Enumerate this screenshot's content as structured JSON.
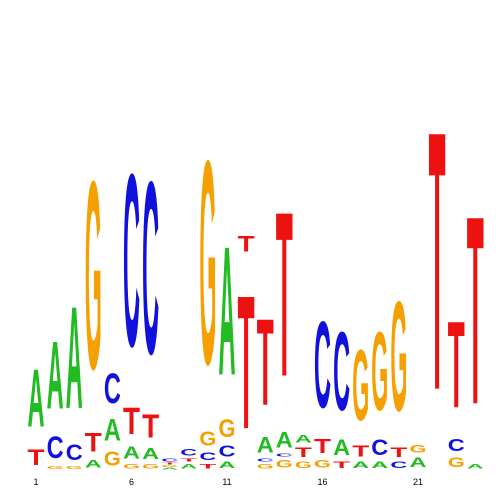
{
  "chart_data": {
    "type": "sequence-logo",
    "title": "",
    "xlabel": "",
    "ylabel": "",
    "colors": {
      "A": "#22bb22",
      "C": "#1111dd",
      "G": "#f5a000",
      "T": "#ee1111"
    },
    "x_tick_labels": [
      "1",
      "6",
      "11",
      "16",
      "21"
    ],
    "x_tick_positions": [
      1,
      6,
      11,
      16,
      21
    ],
    "positions": [
      {
        "pos": 1,
        "letters": [
          [
            "T",
            0.1
          ],
          [
            "A",
            0.37
          ]
        ]
      },
      {
        "pos": 2,
        "letters": [
          [
            "G",
            0.02
          ],
          [
            "C",
            0.14
          ],
          [
            "A",
            0.43
          ]
        ]
      },
      {
        "pos": 3,
        "letters": [
          [
            "G",
            0.02
          ],
          [
            "C",
            0.1
          ],
          [
            "A",
            0.65
          ]
        ]
      },
      {
        "pos": 4,
        "letters": [
          [
            "A",
            0.05
          ],
          [
            "T",
            0.12
          ],
          [
            "G",
            1.2
          ]
        ]
      },
      {
        "pos": 5,
        "letters": [
          [
            "G",
            0.09
          ],
          [
            "A",
            0.14
          ],
          [
            "C",
            0.19
          ]
        ]
      },
      {
        "pos": 6,
        "letters": [
          [
            "G",
            0.03
          ],
          [
            "A",
            0.08
          ],
          [
            "T",
            0.17
          ],
          [
            "C",
            1.1
          ]
        ]
      },
      {
        "pos": 7,
        "letters": [
          [
            "G",
            0.03
          ],
          [
            "A",
            0.07
          ],
          [
            "T",
            0.15
          ],
          [
            "C",
            1.1
          ]
        ]
      },
      {
        "pos": 8,
        "letters": [
          [
            "A",
            0.01
          ],
          [
            "G",
            0.01
          ],
          [
            "T",
            0.01
          ],
          [
            "C",
            0.02
          ]
        ]
      },
      {
        "pos": 9,
        "letters": [
          [
            "A",
            0.03
          ],
          [
            "T",
            0.02
          ],
          [
            "C",
            0.04
          ]
        ]
      },
      {
        "pos": 10,
        "letters": [
          [
            "T",
            0.03
          ],
          [
            "C",
            0.05
          ],
          [
            "G",
            0.09
          ],
          [
            "G",
            1.3
          ]
        ]
      },
      {
        "pos": 11,
        "letters": [
          [
            "A",
            0.04
          ],
          [
            "C",
            0.07
          ],
          [
            "G",
            0.11
          ],
          [
            "A",
            0.82
          ]
        ]
      },
      {
        "pos": 12,
        "letters": [
          [
            "T",
            0.85
          ],
          [
            "T",
            0.1
          ]
        ]
      },
      {
        "pos": 13,
        "letters": [
          [
            "G",
            0.03
          ],
          [
            "C",
            0.02
          ],
          [
            "A",
            0.1
          ],
          [
            "T",
            0.55
          ]
        ]
      },
      {
        "pos": 14,
        "letters": [
          [
            "G",
            0.05
          ],
          [
            "C",
            0.02
          ],
          [
            "A",
            0.1
          ],
          [
            "T",
            1.05
          ]
        ]
      },
      {
        "pos": 15,
        "letters": [
          [
            "G",
            0.04
          ],
          [
            "T",
            0.06
          ],
          [
            "A",
            0.05
          ]
        ]
      },
      {
        "pos": 16,
        "letters": [
          [
            "G",
            0.05
          ],
          [
            "T",
            0.09
          ],
          [
            "C",
            0.55
          ]
        ]
      },
      {
        "pos": 17,
        "letters": [
          [
            "T",
            0.04
          ],
          [
            "A",
            0.1
          ],
          [
            "C",
            0.5
          ]
        ]
      },
      {
        "pos": 18,
        "letters": [
          [
            "A",
            0.04
          ],
          [
            "T",
            0.07
          ],
          [
            "G",
            0.45
          ]
        ]
      },
      {
        "pos": 19,
        "letters": [
          [
            "A",
            0.04
          ],
          [
            "C",
            0.1
          ],
          [
            "G",
            0.5
          ]
        ]
      },
      {
        "pos": 20,
        "letters": [
          [
            "C",
            0.04
          ],
          [
            "T",
            0.06
          ],
          [
            "G",
            0.7
          ]
        ]
      },
      {
        "pos": 21,
        "letters": [
          [
            "A",
            0.06
          ],
          [
            "G",
            0.05
          ]
        ]
      },
      {
        "pos": 22,
        "letters": [
          [
            "T",
            1.65
          ]
        ]
      },
      {
        "pos": 23,
        "letters": [
          [
            "G",
            0.06
          ],
          [
            "C",
            0.08
          ],
          [
            "T",
            0.55
          ]
        ]
      },
      {
        "pos": 24,
        "letters": [
          [
            "A",
            0.03
          ],
          [
            "T",
            1.2
          ]
        ]
      }
    ]
  }
}
